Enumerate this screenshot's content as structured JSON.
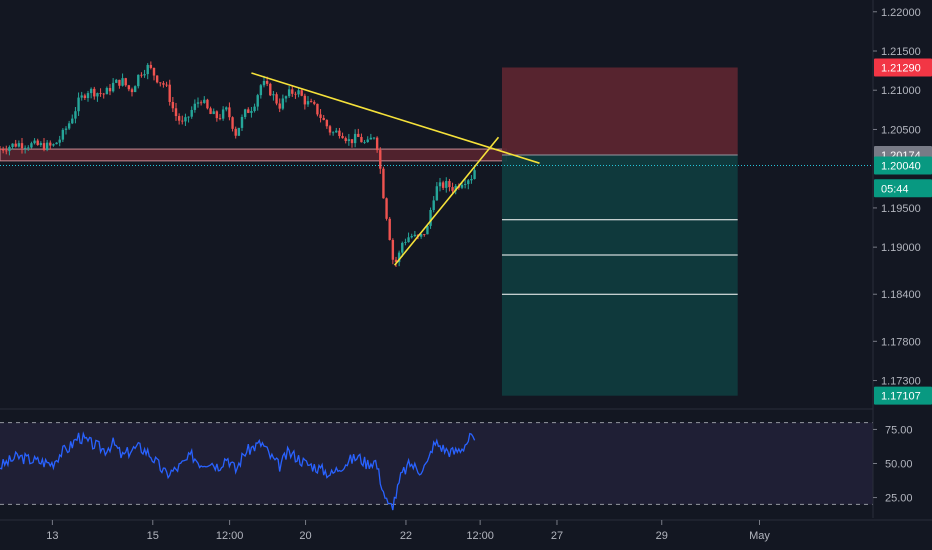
{
  "colors": {
    "background": "#131722",
    "up_candle": "#26a69a",
    "down_candle": "#ef5350",
    "trendline": "#f5e13a",
    "rsi_line": "#2962ff",
    "stop_zone": "#5b2530",
    "target_zone": "#0f3b3e",
    "grid_dashed": "#9598a1",
    "price_badge_red": "#f23645",
    "price_badge_teal": "#089981",
    "price_badge_gray": "#787b86"
  },
  "chart_data": [
    {
      "type": "candlestick",
      "title": "",
      "ylim": [
        1.1695,
        1.2215
      ],
      "x_range": [
        0,
        100
      ],
      "y_ticks": [
        "1.22000",
        "1.21500",
        "1.21000",
        "1.20500",
        "1.19500",
        "1.19000",
        "1.18400",
        "1.17800",
        "1.17300"
      ],
      "y_tick_values": [
        1.22,
        1.215,
        1.21,
        1.205,
        1.195,
        1.19,
        1.184,
        1.178,
        1.173
      ],
      "x_ticks": [
        "13",
        "15",
        "12:00",
        "20",
        "22",
        "12:00",
        "27",
        "29",
        "May"
      ],
      "x_tick_positions": [
        6,
        17.5,
        26.3,
        35,
        46.5,
        55,
        63.8,
        75.8,
        87
      ],
      "price_labels": [
        {
          "text": "1.21290",
          "value": 1.2129,
          "style": "red"
        },
        {
          "text": "1.20174",
          "value": 1.20174,
          "style": "gray"
        },
        {
          "text": "1.20040",
          "value": 1.2004,
          "style": "teal"
        },
        {
          "text": "05:44",
          "value": 1.1975,
          "style": "teal"
        },
        {
          "text": "1.17107",
          "value": 1.17107,
          "style": "teal"
        }
      ],
      "price_path": [
        [
          0,
          1.2025
        ],
        [
          2,
          1.2032
        ],
        [
          4,
          1.203
        ],
        [
          6,
          1.2028
        ],
        [
          7,
          1.204
        ],
        [
          8,
          1.206
        ],
        [
          9,
          1.2085
        ],
        [
          10,
          1.21
        ],
        [
          12,
          1.2095
        ],
        [
          13,
          1.2108
        ],
        [
          14,
          1.2112
        ],
        [
          15,
          1.2098
        ],
        [
          16,
          1.2122
        ],
        [
          17,
          1.213
        ],
        [
          18,
          1.2115
        ],
        [
          19,
          1.2105
        ],
        [
          20,
          1.207
        ],
        [
          21,
          1.2055
        ],
        [
          22,
          1.2075
        ],
        [
          23,
          1.209
        ],
        [
          24,
          1.207
        ],
        [
          25,
          1.2065
        ],
        [
          26,
          1.2075
        ],
        [
          27,
          1.2045
        ],
        [
          28,
          1.207
        ],
        [
          29,
          1.208
        ],
        [
          30,
          1.211
        ],
        [
          31,
          1.2098
        ],
        [
          32,
          1.208
        ],
        [
          33,
          1.2095
        ],
        [
          34,
          1.21
        ],
        [
          35,
          1.2085
        ],
        [
          36,
          1.2078
        ],
        [
          37,
          1.2062
        ],
        [
          38,
          1.2045
        ],
        [
          39,
          1.2048
        ],
        [
          40,
          1.2035
        ],
        [
          41,
          1.204
        ],
        [
          42,
          1.203
        ],
        [
          43,
          1.2045
        ],
        [
          43.5,
          1.2005
        ],
        [
          44,
          1.196
        ],
        [
          44.5,
          1.1925
        ],
        [
          45,
          1.1885
        ],
        [
          45.5,
          1.188
        ],
        [
          46,
          1.1905
        ],
        [
          47,
          1.1915
        ],
        [
          48,
          1.191
        ],
        [
          49,
          1.1925
        ],
        [
          49.5,
          1.196
        ],
        [
          50,
          1.1975
        ],
        [
          51,
          1.198
        ],
        [
          52,
          1.1975
        ],
        [
          53,
          1.1985
        ],
        [
          54,
          1.199
        ],
        [
          54.5,
          1.2003
        ]
      ],
      "trendlines": [
        {
          "name": "resistance",
          "from": [
            28.8,
            1.2122
          ],
          "to": [
            61.8,
            1.2007
          ]
        },
        {
          "name": "support",
          "from": [
            45.2,
            1.1877
          ],
          "to": [
            57.1,
            1.204
          ]
        }
      ],
      "zones": [
        {
          "name": "resistance-band",
          "x": [
            0,
            58
          ],
          "y": [
            1.201,
            1.2025
          ],
          "color": "stop"
        },
        {
          "name": "stop-loss-zone",
          "x": [
            57.5,
            84.5
          ],
          "y": [
            1.20174,
            1.2129
          ],
          "color": "stop"
        },
        {
          "name": "take-profit-zone",
          "x": [
            57.5,
            84.5
          ],
          "y": [
            1.17107,
            1.20174
          ],
          "color": "target"
        }
      ],
      "horizontal_lines": [
        {
          "name": "target-1",
          "x": [
            57.5,
            84.5
          ],
          "y": 1.1935
        },
        {
          "name": "target-2",
          "x": [
            57.5,
            84.5
          ],
          "y": 1.189
        },
        {
          "name": "target-3",
          "x": [
            57.5,
            84.5
          ],
          "y": 1.184
        }
      ],
      "current_price": 1.2004
    },
    {
      "type": "line",
      "title": "",
      "ylim": [
        10,
        90
      ],
      "y_ticks": [
        "75.00",
        "50.00",
        "25.00"
      ],
      "y_tick_values": [
        75,
        50,
        25
      ],
      "levels": [
        80,
        20
      ],
      "series": [
        {
          "x": [
            0,
            2,
            4,
            6,
            7,
            8,
            9,
            10,
            12,
            13,
            14,
            15,
            16,
            17,
            18,
            19,
            20,
            21,
            22,
            23,
            24,
            25,
            26,
            27,
            28,
            29,
            30,
            31,
            32,
            33,
            34,
            35,
            36,
            37,
            38,
            39,
            40,
            41,
            42,
            43,
            43.5,
            44,
            44.5,
            45,
            45.5,
            46,
            47,
            48,
            49,
            49.5,
            50,
            51,
            52,
            53,
            54,
            54.5
          ],
          "values": [
            48,
            55,
            52,
            50,
            58,
            62,
            70,
            66,
            60,
            65,
            55,
            60,
            62,
            58,
            50,
            42,
            45,
            50,
            56,
            50,
            52,
            48,
            55,
            45,
            58,
            62,
            65,
            55,
            48,
            58,
            55,
            50,
            48,
            45,
            42,
            48,
            52,
            55,
            50,
            52,
            40,
            28,
            18,
            20,
            30,
            42,
            50,
            45,
            50,
            62,
            65,
            60,
            58,
            62,
            70,
            60
          ]
        }
      ]
    }
  ]
}
